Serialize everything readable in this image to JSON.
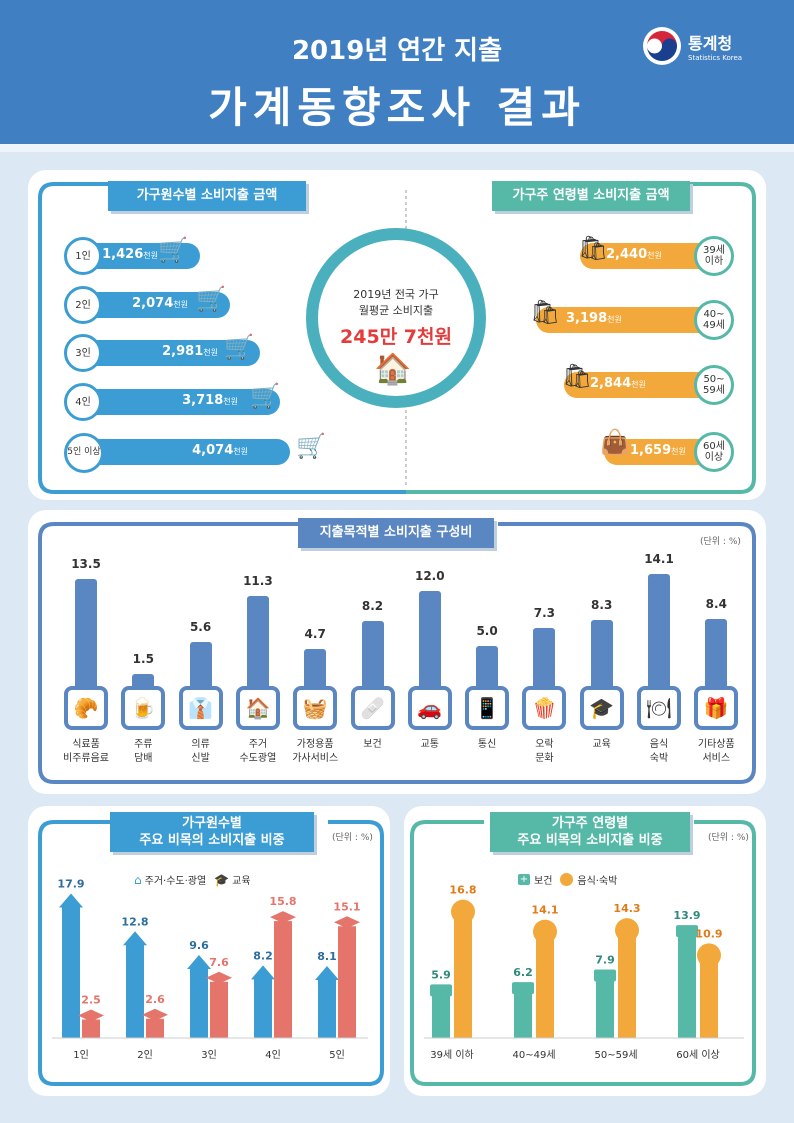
{
  "header": {
    "subtitle": "2019년 연간 지출",
    "title": "가계동향조사 결과",
    "logo_name": "통계청",
    "logo_sub": "Statistics Korea"
  },
  "colors": {
    "header": "#3f7fc2",
    "blue": "#3b9dd4",
    "orange": "#f3a83b",
    "teal": "#56b8a6",
    "category_bar": "#5a86c2",
    "salmon": "#e5756b",
    "red": "#e43b3b"
  },
  "center": {
    "line1": "2019년 전국 가구",
    "line2": "월평균 소비지출",
    "amount": "245만 7천원"
  },
  "household": {
    "title": "가구원수별 소비지출 금액",
    "unit": "천원",
    "rows": [
      {
        "label": "1인",
        "value": "1,426",
        "num": 1426
      },
      {
        "label": "2인",
        "value": "2,074",
        "num": 2074
      },
      {
        "label": "3인",
        "value": "2,981",
        "num": 2981
      },
      {
        "label": "4인",
        "value": "3,718",
        "num": 3718
      },
      {
        "label": "5인 이상",
        "value": "4,074",
        "num": 4074
      }
    ]
  },
  "age": {
    "title": "가구주 연령별 소비지출 금액",
    "unit": "천원",
    "rows": [
      {
        "label": "39세 이하",
        "value": "2,440",
        "num": 2440
      },
      {
        "label": "40~ 49세",
        "value": "3,198",
        "num": 3198
      },
      {
        "label": "50~ 59세",
        "value": "2,844",
        "num": 2844
      },
      {
        "label": "60세 이상",
        "value": "1,659",
        "num": 1659
      }
    ]
  },
  "composition": {
    "title": "지출목적별 소비지출 구성비",
    "unit": "(단위 : %)"
  },
  "chart_data": [
    {
      "type": "bar",
      "title": "지출목적별 소비지출 구성비",
      "unit": "%",
      "categories": [
        "식료품 비주류음료",
        "주류 담배",
        "의류 신발",
        "주거 수도광열",
        "가정용품 가사서비스",
        "보건",
        "교통",
        "통신",
        "오락 문화",
        "교육",
        "음식 숙박",
        "기타상품 서비스"
      ],
      "values": [
        13.5,
        1.5,
        5.6,
        11.3,
        4.7,
        8.2,
        12.0,
        5.0,
        7.3,
        8.3,
        14.1,
        8.4
      ],
      "labels": [
        "13.5",
        "1.5",
        "5.6",
        "11.3",
        "4.7",
        "8.2",
        "12.0",
        "5.0",
        "7.3",
        "8.3",
        "14.1",
        "8.4"
      ],
      "icons": [
        "grocery-icon",
        "beer-icon",
        "clothing-icon",
        "house-icon",
        "washer-icon",
        "firstaid-icon",
        "car-icon",
        "phone-icon",
        "popcorn-icon",
        "graduation-icon",
        "dining-icon",
        "gift-icon"
      ]
    },
    {
      "type": "bar",
      "title": "가구원수별 주요 비목의 소비지출 비중",
      "unit": "(단위 : %)",
      "categories": [
        "1인",
        "2인",
        "3인",
        "4인",
        "5인"
      ],
      "series": [
        {
          "name": "주거·수도·광열",
          "values": [
            17.9,
            12.8,
            9.6,
            8.2,
            8.1
          ],
          "labels": [
            "17.9",
            "12.8",
            "9.6",
            "8.2",
            "8.1"
          ]
        },
        {
          "name": "교육",
          "values": [
            2.5,
            2.6,
            7.6,
            15.8,
            15.1
          ],
          "labels": [
            "2.5",
            "2.6",
            "7.6",
            "15.8",
            "15.1"
          ]
        }
      ]
    },
    {
      "type": "bar",
      "title": "가구주 연령별 주요 비목의 소비지출 비중",
      "unit": "(단위 : %)",
      "categories": [
        "39세 이하",
        "40~49세",
        "50~59세",
        "60세 이상"
      ],
      "series": [
        {
          "name": "보건",
          "values": [
            5.9,
            6.2,
            7.9,
            13.9
          ],
          "labels": [
            "5.9",
            "6.2",
            "7.9",
            "13.9"
          ]
        },
        {
          "name": "음식·숙박",
          "values": [
            16.8,
            14.1,
            14.3,
            10.9
          ],
          "labels": [
            "16.8",
            "14.1",
            "14.3",
            "10.9"
          ]
        }
      ]
    }
  ],
  "bottom_left": {
    "title1": "가구원수별",
    "title2": "주요 비목의 소비지출 비중",
    "unit": "(단위 : %)",
    "legend": [
      "주거·수도·광열",
      "교육"
    ]
  },
  "bottom_right": {
    "title1": "가구주 연령별",
    "title2": "주요 비목의 소비지출 비중",
    "unit": "(단위 : %)",
    "legend": [
      "보건",
      "음식·숙박"
    ]
  }
}
